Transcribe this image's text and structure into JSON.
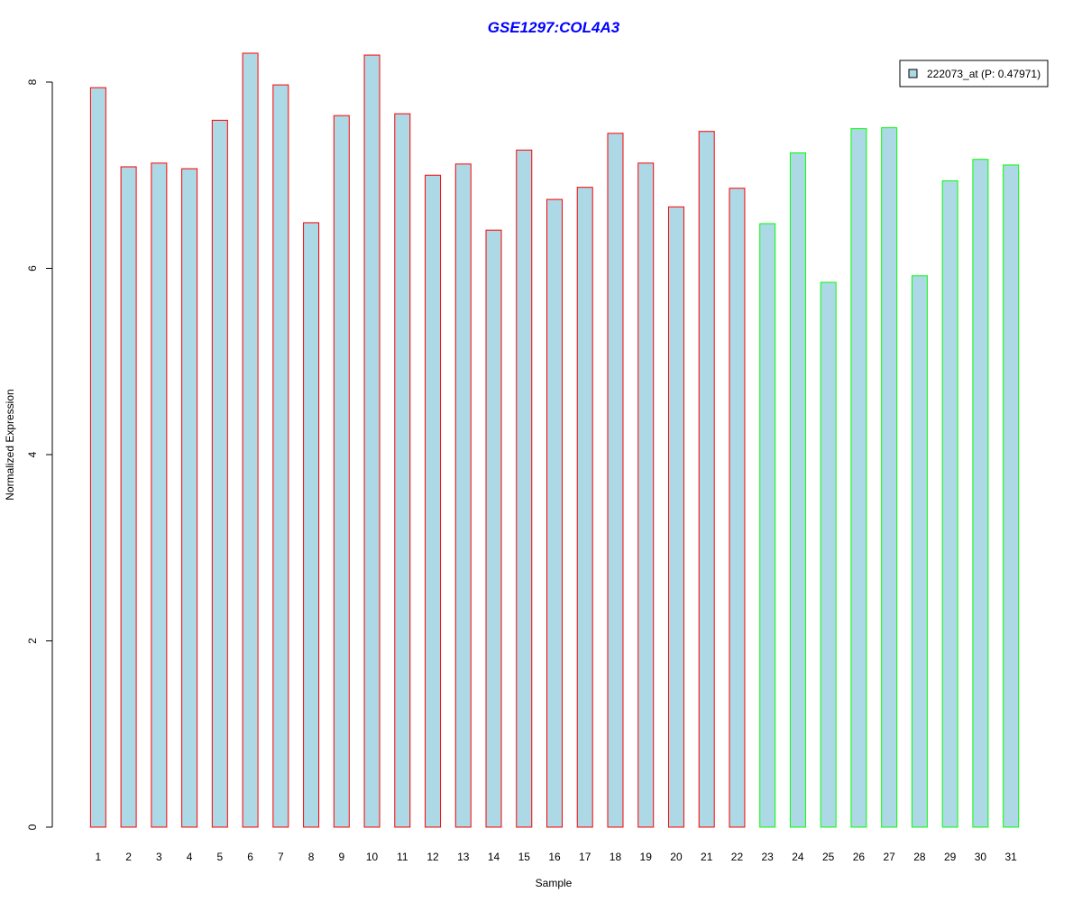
{
  "chart_data": {
    "type": "bar",
    "title": "GSE1297:COL4A3",
    "xlabel": "Sample",
    "ylabel": "Normalized Expression",
    "ylim": [
      0,
      8
    ],
    "yticks": [
      0,
      2,
      4,
      6,
      8
    ],
    "grid": false,
    "legend_position": "top-right",
    "categories": [
      "1",
      "2",
      "3",
      "4",
      "5",
      "6",
      "7",
      "8",
      "9",
      "10",
      "11",
      "12",
      "13",
      "14",
      "15",
      "16",
      "17",
      "18",
      "19",
      "20",
      "21",
      "22",
      "23",
      "24",
      "25",
      "26",
      "27",
      "28",
      "29",
      "30",
      "31"
    ],
    "series": [
      {
        "name": "222073_at (P: 0.47971)",
        "values": [
          7.94,
          7.09,
          7.13,
          7.07,
          7.59,
          8.31,
          7.97,
          6.49,
          7.64,
          8.29,
          7.66,
          7.0,
          7.12,
          6.41,
          7.27,
          6.74,
          6.87,
          7.45,
          7.13,
          6.66,
          7.47,
          6.86,
          6.48,
          7.24,
          5.85,
          7.5,
          7.51,
          5.92,
          6.94,
          7.17,
          7.11
        ],
        "group": [
          "a",
          "a",
          "a",
          "a",
          "a",
          "a",
          "a",
          "a",
          "a",
          "a",
          "a",
          "a",
          "a",
          "a",
          "a",
          "a",
          "a",
          "a",
          "a",
          "a",
          "a",
          "a",
          "b",
          "b",
          "b",
          "b",
          "b",
          "b",
          "b",
          "b",
          "b"
        ]
      }
    ],
    "colors": {
      "fill": "#ADD8E6",
      "group_a_border": "#FF0000",
      "group_b_border": "#00FF00",
      "title": "#0000FF",
      "axis": "#000000"
    }
  }
}
